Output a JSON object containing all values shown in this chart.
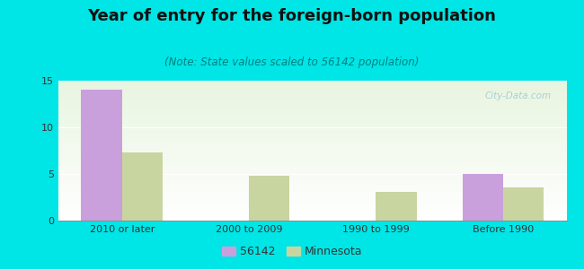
{
  "title": "Year of entry for the foreign-born population",
  "subtitle": "(Note: State values scaled to 56142 population)",
  "categories": [
    "2010 or later",
    "2000 to 2009",
    "1990 to 1999",
    "Before 1990"
  ],
  "series_56142": [
    14.0,
    0,
    0,
    5.0
  ],
  "series_minnesota": [
    7.3,
    4.8,
    3.1,
    3.6
  ],
  "color_56142": "#c9a0dc",
  "color_minnesota": "#c8d5a0",
  "background_outer": "#00e5e5",
  "background_inner_top": "#e8f5e0",
  "background_inner_bottom": "#f8fdf5",
  "ylim": [
    0,
    15
  ],
  "yticks": [
    0,
    5,
    10,
    15
  ],
  "bar_width": 0.32,
  "legend_label_56142": "56142",
  "legend_label_minnesota": "Minnesota",
  "title_fontsize": 13,
  "subtitle_fontsize": 8.5,
  "tick_fontsize": 8,
  "watermark": "City-Data.com",
  "watermark_color": "#a0c8d0"
}
